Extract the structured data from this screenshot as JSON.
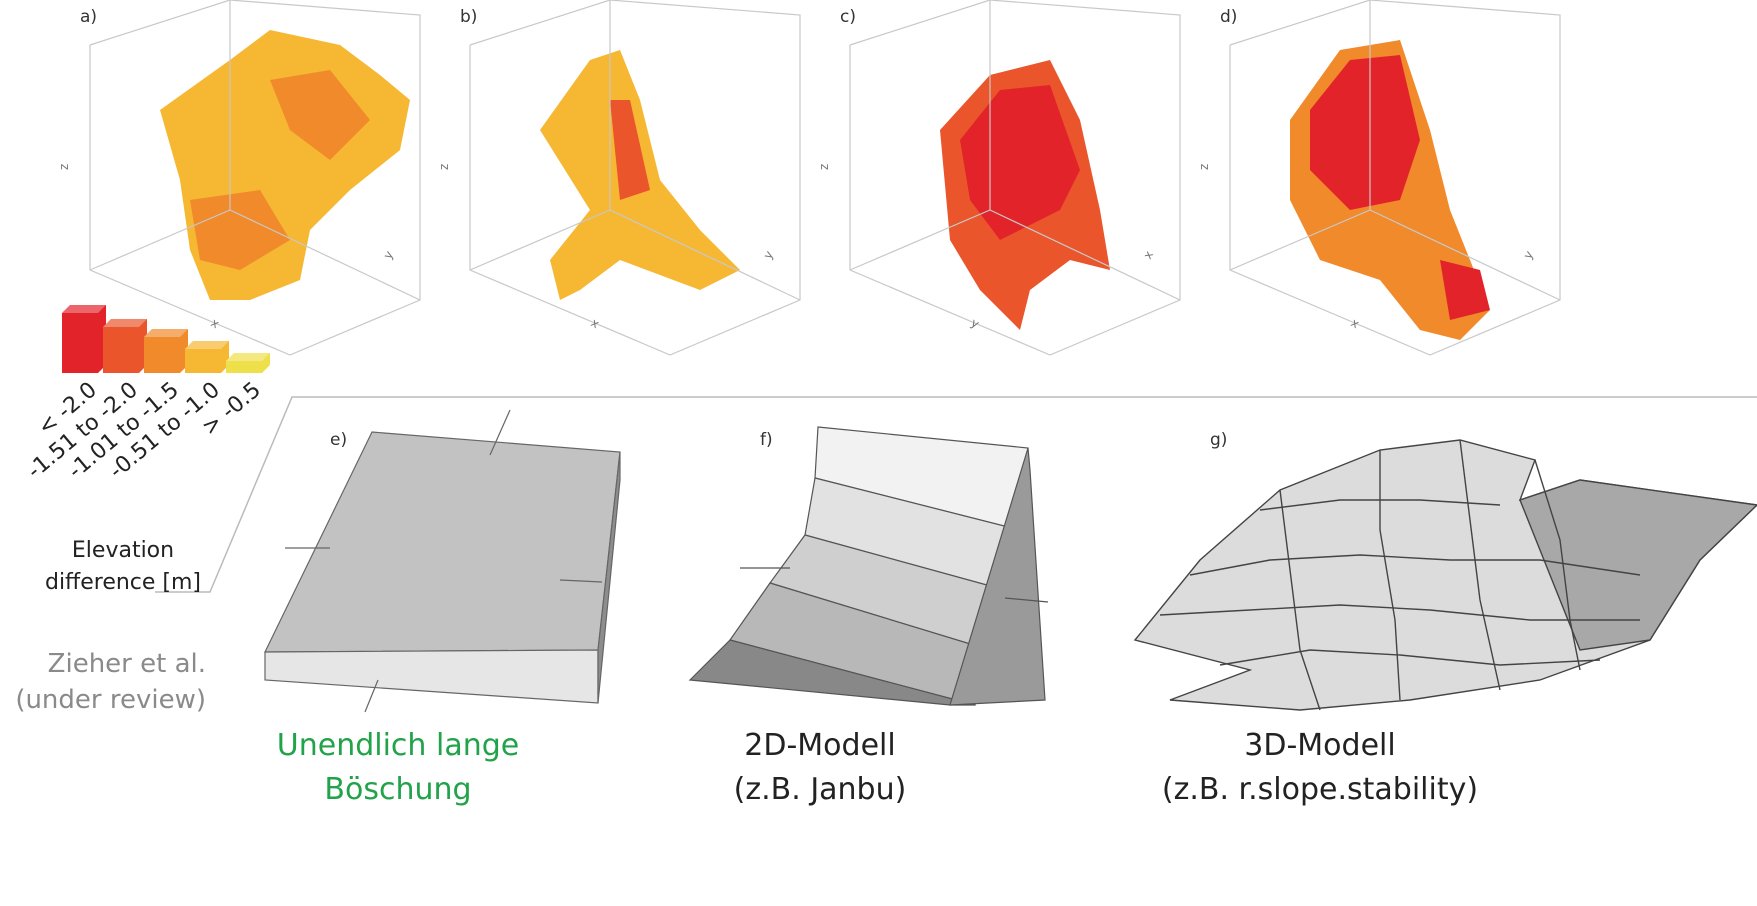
{
  "panels_3d": [
    {
      "label": "a)",
      "axes": [
        "z",
        "x",
        "y"
      ]
    },
    {
      "label": "b)",
      "axes": [
        "z",
        "x",
        "y"
      ]
    },
    {
      "label": "c)",
      "axes": [
        "z",
        "y",
        "x"
      ]
    },
    {
      "label": "d)",
      "axes": [
        "z",
        "x",
        "y"
      ]
    }
  ],
  "legend": {
    "title_lines": [
      "Elevation",
      "difference [m]"
    ],
    "items": [
      {
        "label": "< -2.0",
        "color": "#e3232a"
      },
      {
        "label": "-1.51 to -2.0",
        "color": "#ea552c"
      },
      {
        "label": "-1.01 to -1.5",
        "color": "#f08a2a"
      },
      {
        "label": "-0.51 to -1.0",
        "color": "#f6b733"
      },
      {
        "label": "> -0.5",
        "color": "#eee04a"
      }
    ]
  },
  "credit_lines": [
    "Zieher et al.",
    "(under review)"
  ],
  "models": [
    {
      "label": "e)",
      "caption_lines": [
        "Unendlich lange",
        "Böschung"
      ],
      "caption_color": "#22a34a"
    },
    {
      "label": "f)",
      "caption_lines": [
        "2D-Modell",
        "(z.B. Janbu)"
      ],
      "caption_color": "#222222"
    },
    {
      "label": "g)",
      "caption_lines": [
        "3D-Modell",
        "(z.B. r.slope.stability)"
      ],
      "caption_color": "#222222"
    }
  ]
}
